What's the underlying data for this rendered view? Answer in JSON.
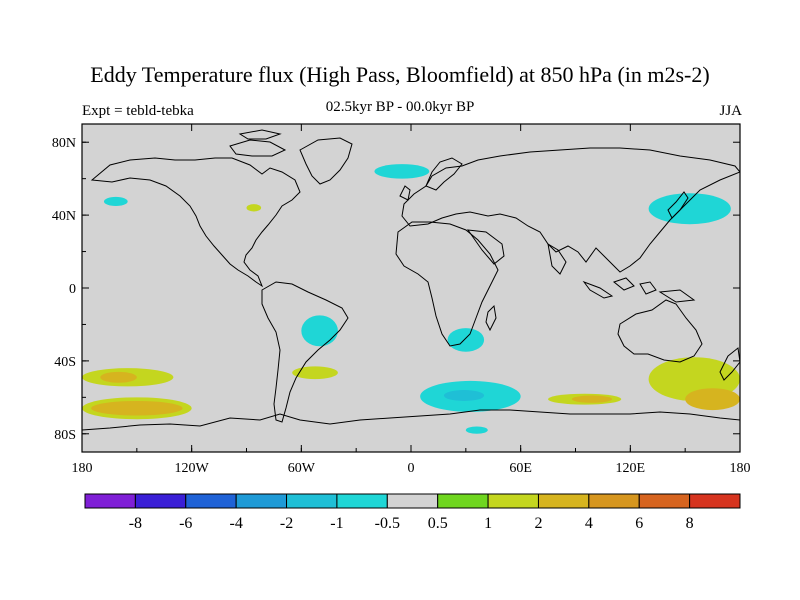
{
  "title": "Eddy Temperature flux (High Pass, Bloomfield) at 850 hPa (in m2s-2)",
  "left_label": "Expt = tebld-tebka",
  "center_label": "02.5kyr BP - 00.0kyr BP",
  "right_label": "JJA",
  "map": {
    "projection": "cylindrical-equidistant",
    "lon_range": [
      -180,
      180
    ],
    "lat_range": [
      -90,
      90
    ],
    "lat_ticks": [
      {
        "value": 80,
        "label": "80N"
      },
      {
        "value": 40,
        "label": "40N"
      },
      {
        "value": 0,
        "label": "0"
      },
      {
        "value": -40,
        "label": "40S"
      },
      {
        "value": -80,
        "label": "80S"
      }
    ],
    "lon_ticks": [
      {
        "value": -180,
        "label": "180"
      },
      {
        "value": -120,
        "label": "120W"
      },
      {
        "value": -60,
        "label": "60W"
      },
      {
        "value": 0,
        "label": "0"
      },
      {
        "value": 60,
        "label": "60E"
      },
      {
        "value": 120,
        "label": "120E"
      },
      {
        "value": 180,
        "label": "180"
      }
    ],
    "background_color": "#d3d3d3"
  },
  "colorbar": {
    "colors": [
      "#7f1fd6",
      "#3a1fd6",
      "#1f62d6",
      "#1f9ad6",
      "#1fbfd6",
      "#1fd6d6",
      "#d3d3d3",
      "#6fd61f",
      "#c4d61f",
      "#d6b41f",
      "#d6961f",
      "#d6641f",
      "#d6341f"
    ],
    "labels": [
      "-8",
      "-6",
      "-4",
      "-2",
      "-1",
      "-0.5",
      "0.5",
      "1",
      "2",
      "4",
      "6",
      "8"
    ]
  },
  "chart_data": {
    "type": "heatmap",
    "title": "Eddy Temperature flux (High Pass, Bloomfield) at 850 hPa (in m2s-2)",
    "levels": [
      -8,
      -6,
      -4,
      -2,
      -1,
      -0.5,
      0.5,
      1,
      2,
      4,
      6,
      8
    ],
    "regions": [
      {
        "name": "South Pacific 40S band",
        "value": 1,
        "lon": [
          -180,
          -130
        ],
        "lat": [
          -44,
          -54
        ]
      },
      {
        "name": "South Pacific 40S core",
        "value": 2,
        "lon": [
          -170,
          -150
        ],
        "lat": [
          -46,
          -52
        ]
      },
      {
        "name": "South Pacific 55S band",
        "value": 1,
        "lon": [
          -180,
          -120
        ],
        "lat": [
          -60,
          -72
        ]
      },
      {
        "name": "South Pacific 55S core",
        "value": 2,
        "lon": [
          -175,
          -125
        ],
        "lat": [
          -62,
          -70
        ]
      },
      {
        "name": "South Atlantic west",
        "value": 1,
        "lon": [
          -65,
          -40
        ],
        "lat": [
          -43,
          -50
        ]
      },
      {
        "name": "Southeast Australia",
        "value": 1,
        "lon": [
          130,
          180
        ],
        "lat": [
          -38,
          -62
        ]
      },
      {
        "name": "Southern Indian 55S",
        "value": 1,
        "lon": [
          75,
          115
        ],
        "lat": [
          -58,
          -64
        ]
      },
      {
        "name": "Southern Indian 55S core",
        "value": 2,
        "lon": [
          88,
          110
        ],
        "lat": [
          -59,
          -63
        ]
      },
      {
        "name": "South of NZ",
        "value": 2,
        "lon": [
          150,
          180
        ],
        "lat": [
          -55,
          -67
        ]
      },
      {
        "name": "Great Lakes",
        "value": 1,
        "lon": [
          -90,
          -82
        ],
        "lat": [
          42,
          46
        ]
      },
      {
        "name": "South Atlantic 55S",
        "value": -1,
        "lon": [
          5,
          60
        ],
        "lat": [
          -51,
          -68
        ]
      },
      {
        "name": "South Atlantic 55S core",
        "value": -2,
        "lon": [
          18,
          40
        ],
        "lat": [
          -56,
          -62
        ]
      },
      {
        "name": "South America east",
        "value": -1,
        "lon": [
          -60,
          -40
        ],
        "lat": [
          -15,
          -32
        ]
      },
      {
        "name": "South Africa",
        "value": -1,
        "lon": [
          20,
          40
        ],
        "lat": [
          -22,
          -35
        ]
      },
      {
        "name": "Japan / Kuril",
        "value": -1,
        "lon": [
          130,
          175
        ],
        "lat": [
          35,
          52
        ]
      },
      {
        "name": "North Atlantic",
        "value": -1,
        "lon": [
          -20,
          10
        ],
        "lat": [
          60,
          68
        ]
      },
      {
        "name": "North Pacific",
        "value": -1,
        "lon": [
          -168,
          -155
        ],
        "lat": [
          45,
          50
        ]
      },
      {
        "name": "Antarctic Pacific",
        "value": -1,
        "lon": [
          30,
          42
        ],
        "lat": [
          -76,
          -80
        ]
      }
    ]
  }
}
